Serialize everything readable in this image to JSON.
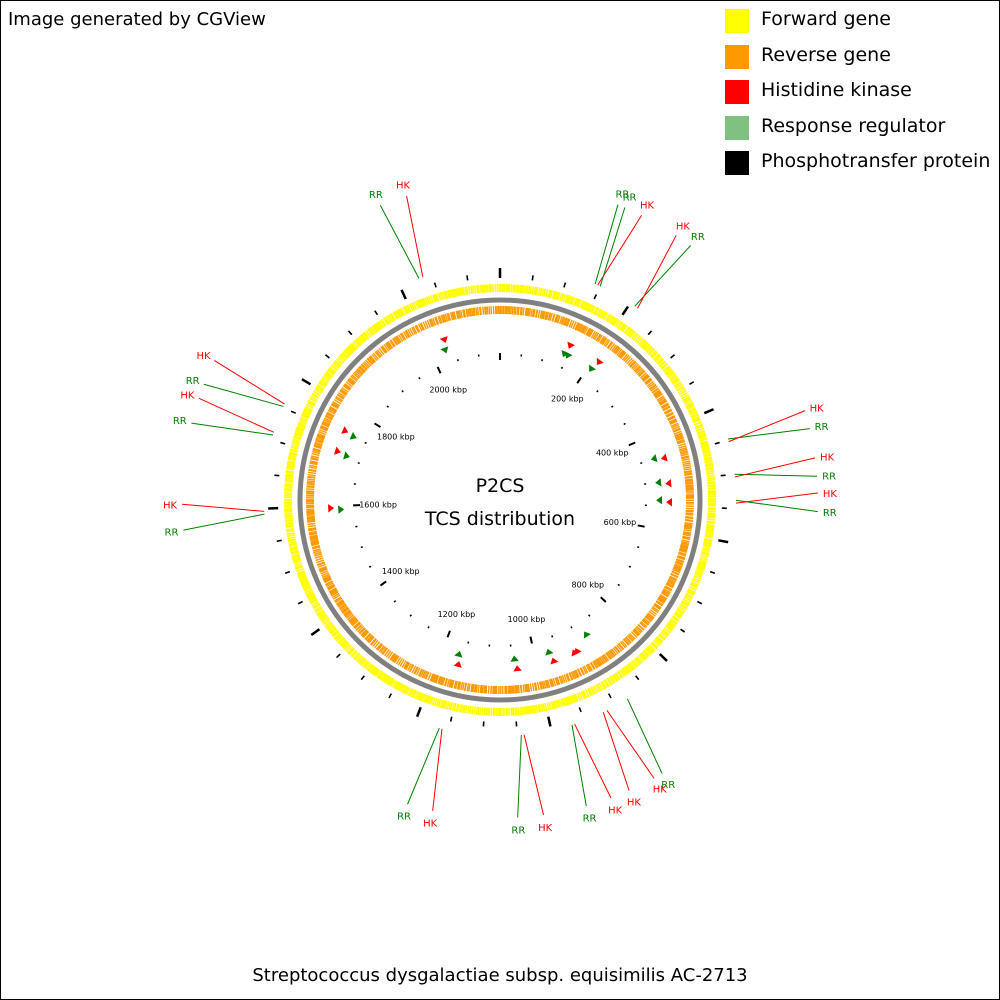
{
  "header": {
    "generator_label": "Image generated by CGView"
  },
  "legend": [
    {
      "label": "Forward gene",
      "color": "#ffff00"
    },
    {
      "label": "Reverse gene",
      "color": "#ff9900"
    },
    {
      "label": "Histidine kinase",
      "color": "#ff0000"
    },
    {
      "label": "Response regulator",
      "color": "#80c080"
    },
    {
      "label": "Phosphotransfer protein",
      "color": "#000000"
    }
  ],
  "map": {
    "title_line1": "P2CS",
    "title_line2": "TCS distribution",
    "organism": "Streptococcus dysgalactiae subsp. equisimilis AC-2713",
    "genome_length_kbp": 2150,
    "tick_labels": [
      "200 kbp",
      "400 kbp",
      "600 kbp",
      "800 kbp",
      "1000 kbp",
      "1200 kbp",
      "1400 kbp",
      "1600 kbp",
      "1800 kbp",
      "2000 kbp"
    ],
    "colors": {
      "forward_gene": "#ffff00",
      "reverse_gene": "#ff9900",
      "backbone": "#808080",
      "hk": "#ff0000",
      "rr_label": "#008000",
      "rr_marker": "#008000"
    },
    "tcs_labels": [
      {
        "type": "RR",
        "text": "RR",
        "position_kbp": 142
      },
      {
        "type": "HK",
        "text": "HK",
        "position_kbp": 146
      },
      {
        "type": "RR",
        "text": "RR",
        "position_kbp": 150
      },
      {
        "type": "RR",
        "text": "RR",
        "position_kbp": 208
      },
      {
        "type": "HK",
        "text": "HK",
        "position_kbp": 213
      },
      {
        "type": "RR",
        "text": "RR",
        "position_kbp": 448
      },
      {
        "type": "HK",
        "text": "HK",
        "position_kbp": 452
      },
      {
        "type": "RR",
        "text": "RR",
        "position_kbp": 500
      },
      {
        "type": "HK",
        "text": "HK",
        "position_kbp": 504
      },
      {
        "type": "RR",
        "text": "RR",
        "position_kbp": 538
      },
      {
        "type": "HK",
        "text": "HK",
        "position_kbp": 542
      },
      {
        "type": "RR",
        "text": "RR",
        "position_kbp": 880
      },
      {
        "type": "HK",
        "text": "HK",
        "position_kbp": 914
      },
      {
        "type": "HK",
        "text": "HK",
        "position_kbp": 920
      },
      {
        "type": "HK",
        "text": "HK",
        "position_kbp": 965
      },
      {
        "type": "RR",
        "text": "RR",
        "position_kbp": 969
      },
      {
        "type": "HK",
        "text": "HK",
        "position_kbp": 1040
      },
      {
        "type": "RR",
        "text": "RR",
        "position_kbp": 1044
      },
      {
        "type": "HK",
        "text": "HK",
        "position_kbp": 1160
      },
      {
        "type": "RR",
        "text": "RR",
        "position_kbp": 1164
      },
      {
        "type": "RR",
        "text": "RR",
        "position_kbp": 1592
      },
      {
        "type": "HK",
        "text": "HK",
        "position_kbp": 1596
      },
      {
        "type": "RR",
        "text": "RR",
        "position_kbp": 1708
      },
      {
        "type": "HK",
        "text": "HK",
        "position_kbp": 1712
      },
      {
        "type": "RR",
        "text": "RR",
        "position_kbp": 1752
      },
      {
        "type": "HK",
        "text": "HK",
        "position_kbp": 1756
      },
      {
        "type": "RR",
        "text": "RR",
        "position_kbp": 2030
      },
      {
        "type": "HK",
        "text": "HK",
        "position_kbp": 2036
      }
    ]
  }
}
